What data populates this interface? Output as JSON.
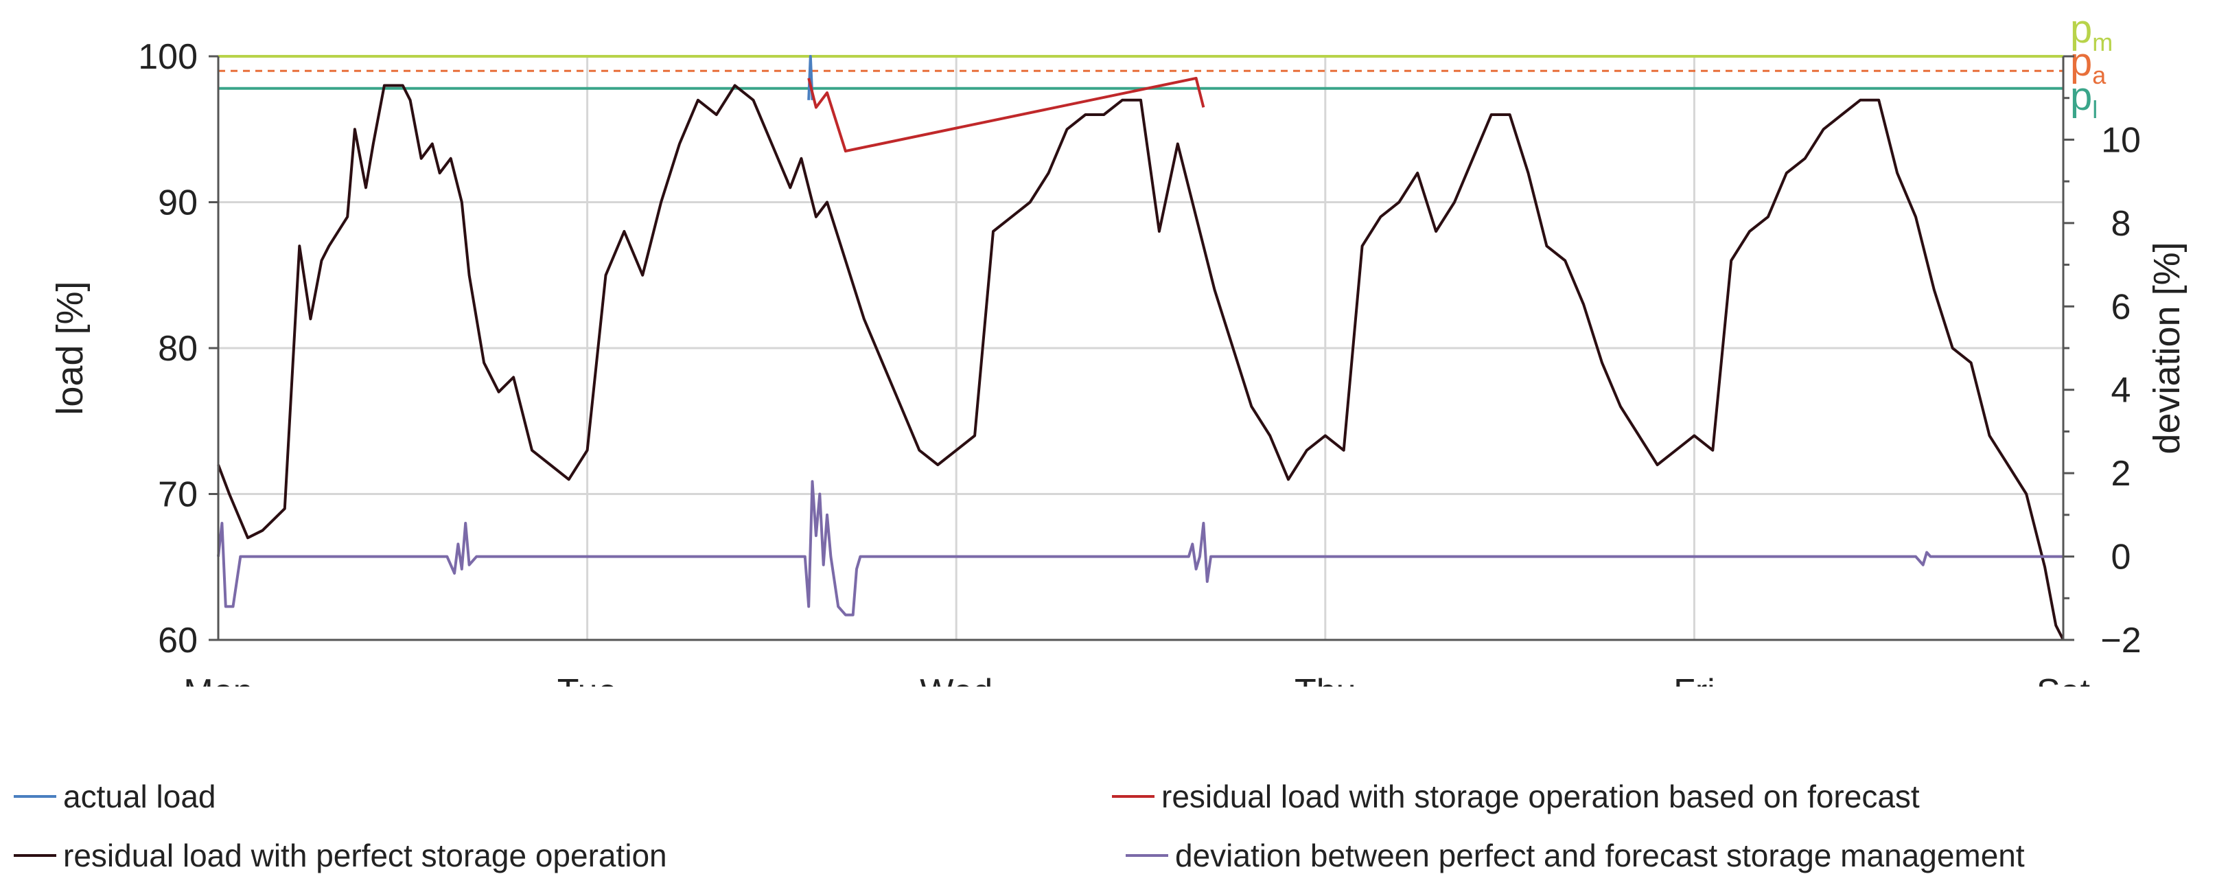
{
  "chart_data": {
    "type": "line",
    "x_ticks": [
      "Mon",
      "Tue",
      "Wed",
      "Thu",
      "Fri",
      "Sat"
    ],
    "ylabel": "load [%]",
    "y2label": "deviation [%]",
    "ylim": [
      60,
      100
    ],
    "y_ticks": [
      "60",
      "70",
      "80",
      "90",
      "100"
    ],
    "y2lim": [
      -2,
      12
    ],
    "y2_ticks": [
      "−2",
      "0",
      "2",
      "4",
      "6",
      "8",
      "10"
    ],
    "grid": true,
    "reference_lines": [
      {
        "label": "p",
        "sub": "m",
        "value": 100,
        "color": "#b8d34a",
        "style": "solid"
      },
      {
        "label": "p",
        "sub": "a",
        "value": 99,
        "color": "#e86f3a",
        "style": "dashed"
      },
      {
        "label": "p",
        "sub": "l",
        "value": 97.8,
        "color": "#3aa58a",
        "style": "solid"
      }
    ],
    "series": [
      {
        "name": "residual load with perfect storage operation",
        "color": "#2b0e12",
        "x": [
          0,
          0.03,
          0.08,
          0.12,
          0.18,
          0.22,
          0.25,
          0.28,
          0.3,
          0.35,
          0.37,
          0.4,
          0.42,
          0.45,
          0.5,
          0.52,
          0.55,
          0.58,
          0.6,
          0.63,
          0.66,
          0.68,
          0.72,
          0.76,
          0.8,
          0.85,
          0.9,
          0.95,
          1.0,
          1.05,
          1.1,
          1.15,
          1.2,
          1.25,
          1.3,
          1.35,
          1.4,
          1.45,
          1.5,
          1.55,
          1.58,
          1.62,
          1.65,
          1.7,
          1.75,
          1.8,
          1.85,
          1.9,
          1.95,
          2.0,
          2.05,
          2.1,
          2.15,
          2.2,
          2.25,
          2.3,
          2.35,
          2.4,
          2.45,
          2.5,
          2.55,
          2.6,
          2.65,
          2.7,
          2.75,
          2.8,
          2.85,
          2.9,
          2.95,
          3.0,
          3.05,
          3.1,
          3.15,
          3.2,
          3.25,
          3.3,
          3.35,
          3.4,
          3.45,
          3.5,
          3.55,
          3.6,
          3.65,
          3.7,
          3.75,
          3.8,
          3.85,
          3.9,
          3.95,
          4.0,
          4.05,
          4.1,
          4.15,
          4.2,
          4.25,
          4.3,
          4.35,
          4.4,
          4.45,
          4.5,
          4.55,
          4.6,
          4.65,
          4.7,
          4.75,
          4.8,
          4.85,
          4.9,
          4.95,
          4.98,
          5.0
        ],
        "y": [
          72,
          70,
          67,
          67.5,
          69,
          87,
          82,
          86,
          87,
          89,
          95,
          91,
          94,
          98,
          98,
          97,
          93,
          94,
          92,
          93,
          90,
          85,
          79,
          77,
          78,
          73,
          72,
          71,
          73,
          85,
          88,
          85,
          90,
          94,
          97,
          96,
          98,
          97,
          94,
          91,
          93,
          89,
          90,
          86,
          82,
          79,
          76,
          73,
          72,
          73,
          74,
          88,
          89,
          90,
          92,
          95,
          96,
          96,
          97,
          97,
          88,
          94,
          89,
          84,
          80,
          76,
          74,
          71,
          73,
          74,
          73,
          87,
          89,
          90,
          92,
          88,
          90,
          93,
          96,
          96,
          92,
          87,
          86,
          83,
          79,
          76,
          74,
          72,
          73,
          74,
          73,
          86,
          88,
          89,
          92,
          93,
          95,
          96,
          97,
          97,
          92,
          89,
          84,
          80,
          79,
          74,
          72,
          70,
          65,
          61,
          60
        ]
      },
      {
        "name": "actual load",
        "color": "#4a7fc0",
        "x": [
          1.6,
          1.605,
          1.61
        ],
        "y": [
          97,
          100,
          97
        ]
      },
      {
        "name": "residual load with storage operation based on forecast",
        "color": "#c0282a",
        "x": [
          1.6,
          1.62,
          1.65,
          1.7,
          2.65,
          2.67
        ],
        "y": [
          98.5,
          96.5,
          97.5,
          93.5,
          98.5,
          96.5
        ]
      },
      {
        "name": "deviation between perfect and forecast storage management",
        "color": "#7b6aa8",
        "axis": "y2",
        "x": [
          0,
          0.01,
          0.02,
          0.04,
          0.06,
          0.1,
          0.5,
          0.62,
          0.64,
          0.65,
          0.66,
          0.67,
          0.68,
          0.7,
          1.0,
          1.5,
          1.59,
          1.6,
          1.61,
          1.62,
          1.63,
          1.64,
          1.65,
          1.66,
          1.68,
          1.7,
          1.72,
          1.73,
          1.74,
          2.0,
          2.5,
          2.63,
          2.64,
          2.65,
          2.66,
          2.67,
          2.68,
          2.69,
          2.71,
          3.0,
          3.5,
          4.0,
          4.5,
          4.6,
          4.62,
          4.63,
          4.64,
          5.0
        ],
        "y": [
          0,
          0.8,
          -1.2,
          -1.2,
          0,
          0,
          0,
          0,
          -0.4,
          0.3,
          -0.3,
          0.8,
          -0.2,
          0,
          0,
          0,
          0,
          -1.2,
          1.8,
          0.5,
          1.5,
          -0.2,
          1.0,
          0,
          -1.2,
          -1.4,
          -1.4,
          -0.3,
          0,
          0,
          0,
          0,
          0.3,
          -0.3,
          0,
          0.8,
          -0.6,
          0,
          0,
          0,
          0,
          0,
          0,
          0,
          -0.2,
          0.1,
          0,
          0
        ]
      }
    ]
  },
  "legend": [
    {
      "label": "actual load",
      "color": "#4a7fc0"
    },
    {
      "label": "residual load with storage operation based on forecast",
      "color": "#c0282a"
    },
    {
      "label": "residual load with perfect storage operation",
      "color": "#2b0e12"
    },
    {
      "label": "deviation between perfect and forecast storage management",
      "color": "#7b6aa8"
    }
  ]
}
